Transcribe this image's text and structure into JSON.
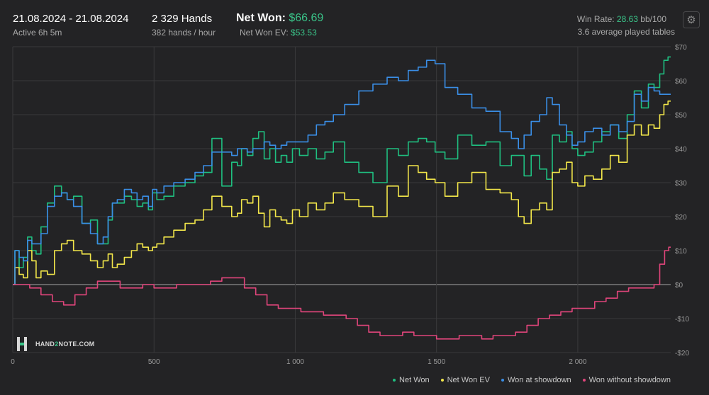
{
  "header": {
    "date_range": "21.08.2024 - 21.08.2024",
    "active_time": "Active 6h 5m",
    "hands_label": "2 329 Hands",
    "hands_rate": "382 hands / hour",
    "net_won_label": "Net Won:",
    "net_won_value": "$66.69",
    "net_won_ev_label": "Net Won  EV:",
    "net_won_ev_value": "$53.53",
    "win_rate_label": "Win Rate:",
    "win_rate_value": "28.63",
    "win_rate_unit": "bb/100",
    "tables_label": "3.6 average played tables"
  },
  "logo": {
    "part1": "HAND",
    "part2": "2",
    "part3": "NOTE.COM"
  },
  "colors": {
    "net_won": "#1fbf80",
    "net_won_ev": "#f2e64a",
    "showdown": "#3a8ee6",
    "non_showdown": "#e0457b"
  },
  "icons": {
    "settings": "gear-icon"
  },
  "chart_data": {
    "type": "line",
    "title": "",
    "xlabel": "",
    "ylabel": "",
    "xlim": [
      0,
      2329
    ],
    "ylim": [
      -20,
      70
    ],
    "x_ticks": [
      0,
      500,
      1000,
      1500,
      2000
    ],
    "x_tick_labels": [
      "0",
      "500",
      "1 000",
      "1 500",
      "2 000"
    ],
    "y_ticks": [
      70,
      60,
      50,
      40,
      30,
      20,
      10,
      0,
      -10,
      -20
    ],
    "y_tick_labels": [
      "$70",
      "$60",
      "$50",
      "$40",
      "$30",
      "$20",
      "$10",
      "$0",
      "-$10",
      "-$20"
    ],
    "grid": true,
    "legend_position": "bottom-right",
    "series": [
      {
        "name": "Net Won",
        "color": "#1fbf80",
        "x": [
          0,
          15,
          30,
          45,
          60,
          75,
          90,
          110,
          135,
          160,
          185,
          200,
          230,
          260,
          290,
          310,
          330,
          345,
          360,
          380,
          410,
          430,
          450,
          470,
          490,
          500,
          520,
          550,
          590,
          630,
          660,
          690,
          720,
          760,
          790,
          800,
          820,
          840,
          860,
          880,
          900,
          920,
          940,
          960,
          980,
          1000,
          1030,
          1060,
          1090,
          1120,
          1150,
          1200,
          1250,
          1300,
          1350,
          1380,
          1420,
          1450,
          1480,
          1510,
          1550,
          1600,
          1650,
          1700,
          1750,
          1780,
          1800,
          1820,
          1850,
          1880,
          1900,
          1920,
          1950,
          1970,
          1990,
          2010,
          2040,
          2070,
          2100,
          2130,
          2160,
          2190,
          2210,
          2240,
          2260,
          2280,
          2300,
          2310,
          2329
        ],
        "y": [
          0,
          10,
          5,
          8,
          14,
          10,
          9,
          17,
          24,
          29,
          27,
          25,
          26,
          18,
          19,
          12,
          12,
          19,
          24,
          24,
          26,
          25,
          23,
          24,
          22,
          27,
          25,
          26,
          29,
          30,
          32,
          33,
          43,
          29,
          36,
          35,
          40,
          38,
          43,
          45,
          37,
          40,
          36,
          38,
          36,
          40,
          38,
          40,
          37,
          39,
          42,
          36,
          33,
          30,
          40,
          38,
          42,
          43,
          42,
          39,
          37,
          44,
          41,
          42,
          35,
          38,
          38,
          32,
          38,
          34,
          31,
          44,
          42,
          45,
          40,
          38,
          39,
          42,
          45,
          47,
          43,
          50,
          57,
          52,
          59,
          58,
          62,
          66,
          67
        ]
      },
      {
        "name": "Net Won  EV",
        "color": "#f2e64a",
        "x": [
          0,
          15,
          30,
          45,
          60,
          75,
          90,
          110,
          135,
          160,
          185,
          200,
          230,
          260,
          290,
          310,
          330,
          345,
          360,
          380,
          410,
          430,
          450,
          470,
          490,
          500,
          520,
          550,
          590,
          630,
          660,
          690,
          720,
          760,
          790,
          800,
          820,
          840,
          860,
          880,
          900,
          920,
          940,
          960,
          980,
          1000,
          1030,
          1060,
          1090,
          1120,
          1150,
          1200,
          1250,
          1300,
          1350,
          1380,
          1420,
          1450,
          1480,
          1510,
          1550,
          1600,
          1650,
          1700,
          1750,
          1780,
          1800,
          1820,
          1850,
          1880,
          1900,
          1920,
          1950,
          1970,
          1990,
          2010,
          2040,
          2070,
          2100,
          2130,
          2160,
          2190,
          2210,
          2240,
          2260,
          2280,
          2300,
          2310,
          2329
        ],
        "y": [
          0,
          5,
          3,
          2,
          10,
          7,
          2,
          4,
          3,
          10,
          12,
          13,
          10,
          9,
          7,
          5,
          7,
          9,
          5,
          6,
          8,
          10,
          12,
          11,
          10,
          11,
          12,
          14,
          16,
          18,
          19,
          22,
          26,
          23,
          20,
          21,
          25,
          24,
          26,
          21,
          17,
          22,
          20,
          19,
          18,
          22,
          20,
          24,
          22,
          24,
          27,
          25,
          23,
          20,
          29,
          26,
          35,
          33,
          31,
          30,
          26,
          30,
          33,
          28,
          27,
          25,
          20,
          18,
          22,
          24,
          22,
          33,
          34,
          36,
          30,
          29,
          32,
          31,
          34,
          38,
          36,
          44,
          47,
          44,
          47,
          46,
          50,
          53,
          54
        ]
      },
      {
        "name": "Won at showdown",
        "color": "#3a8ee6",
        "x": [
          0,
          15,
          30,
          45,
          60,
          75,
          90,
          110,
          135,
          160,
          185,
          200,
          230,
          260,
          290,
          310,
          330,
          345,
          360,
          380,
          410,
          430,
          450,
          470,
          490,
          500,
          520,
          550,
          590,
          630,
          660,
          690,
          720,
          760,
          790,
          800,
          820,
          840,
          860,
          880,
          900,
          920,
          940,
          960,
          980,
          1000,
          1030,
          1060,
          1090,
          1120,
          1150,
          1200,
          1250,
          1300,
          1350,
          1380,
          1420,
          1450,
          1480,
          1510,
          1550,
          1600,
          1650,
          1700,
          1750,
          1780,
          1800,
          1820,
          1850,
          1880,
          1900,
          1920,
          1950,
          1970,
          1990,
          2010,
          2040,
          2070,
          2100,
          2130,
          2160,
          2190,
          2210,
          2240,
          2260,
          2280,
          2300,
          2310,
          2329
        ],
        "y": [
          0,
          10,
          8,
          7,
          13,
          12,
          12,
          15,
          23,
          26,
          27,
          25,
          23,
          18,
          15,
          12,
          14,
          20,
          24,
          25,
          28,
          27,
          25,
          26,
          23,
          28,
          27,
          29,
          30,
          31,
          33,
          35,
          39,
          39,
          38,
          40,
          40,
          39,
          40,
          40,
          42,
          41,
          40,
          41,
          42,
          42,
          42,
          44,
          47,
          48,
          50,
          53,
          57,
          59,
          61,
          60,
          63,
          64,
          66,
          65,
          58,
          56,
          52,
          51,
          45,
          43,
          40,
          44,
          48,
          50,
          55,
          53,
          47,
          44,
          41,
          42,
          45,
          46,
          44,
          47,
          45,
          48,
          56,
          54,
          58,
          57,
          56,
          56,
          56
        ]
      },
      {
        "name": "Won without showdown",
        "color": "#e0457b",
        "x": [
          0,
          40,
          80,
          120,
          160,
          200,
          240,
          280,
          320,
          360,
          400,
          440,
          480,
          520,
          560,
          600,
          640,
          680,
          720,
          760,
          800,
          840,
          880,
          920,
          960,
          1000,
          1040,
          1080,
          1120,
          1160,
          1200,
          1240,
          1280,
          1320,
          1360,
          1400,
          1440,
          1480,
          1520,
          1560,
          1600,
          1640,
          1680,
          1720,
          1760,
          1800,
          1840,
          1880,
          1920,
          1960,
          2000,
          2040,
          2080,
          2120,
          2160,
          2200,
          2240,
          2260,
          2280,
          2300,
          2315,
          2329
        ],
        "y": [
          0,
          0,
          -1,
          -3,
          -5,
          -6,
          -3,
          -1,
          1,
          1,
          -1,
          -1,
          0,
          -1,
          -1,
          0,
          0,
          0,
          1,
          2,
          2,
          -1,
          -3,
          -6,
          -7,
          -7,
          -8,
          -8,
          -9,
          -9,
          -10,
          -12,
          -14,
          -15,
          -15,
          -14,
          -15,
          -15,
          -16,
          -16,
          -15,
          -15,
          -16,
          -15,
          -15,
          -14,
          -12,
          -10,
          -9,
          -8,
          -7,
          -7,
          -5,
          -4,
          -2,
          -1,
          -1,
          -1,
          0,
          6,
          10,
          11
        ]
      }
    ]
  }
}
